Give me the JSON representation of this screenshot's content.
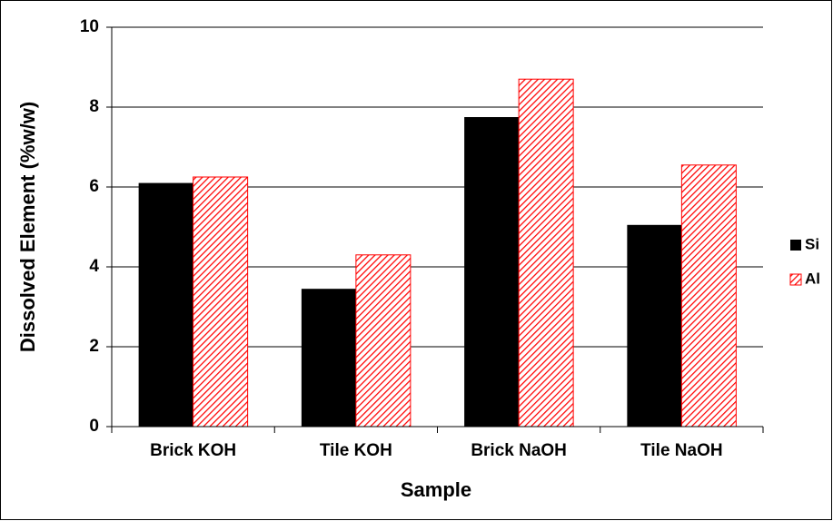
{
  "chart_data": {
    "type": "bar",
    "categories": [
      "Brick KOH",
      "Tile KOH",
      "Brick NaOH",
      "Tile NaOH"
    ],
    "series": [
      {
        "name": "Si",
        "color": "#000000",
        "values": [
          6.1,
          3.45,
          7.75,
          5.05
        ]
      },
      {
        "name": "Al",
        "color": "#ff0000",
        "hatch": true,
        "values": [
          6.25,
          4.3,
          8.7,
          6.55
        ]
      }
    ],
    "xlabel": "Sample",
    "ylabel": "Dissolved Element (%w/w)",
    "ylim": [
      0,
      10
    ],
    "yticks": [
      0,
      2,
      4,
      6,
      8,
      10
    ],
    "grid": true,
    "legend": "right"
  }
}
